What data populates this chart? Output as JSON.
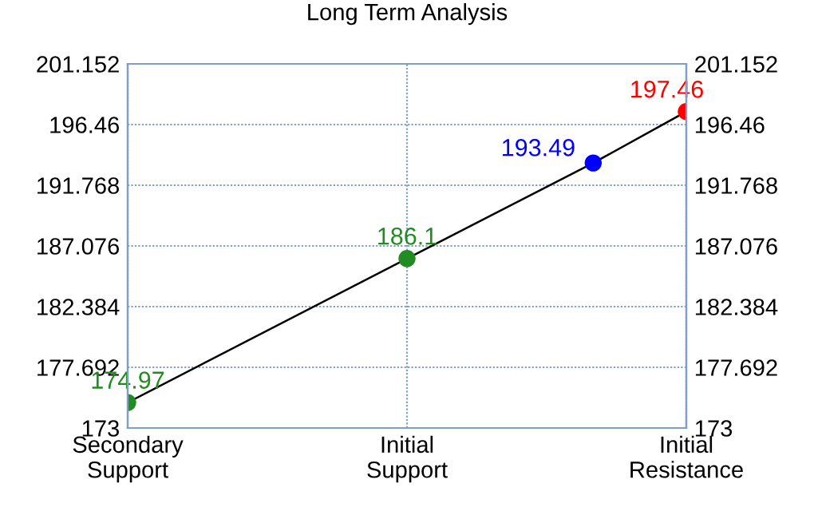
{
  "chart_data": {
    "type": "line",
    "title": "Long Term Analysis",
    "categories": [
      "Secondary\nSupport",
      null,
      null,
      "Initial\nSupport",
      null,
      null,
      "Initial\nResistance"
    ],
    "ylim": [
      173,
      201.152
    ],
    "yticks": [
      173,
      177.692,
      182.384,
      187.076,
      191.768,
      196.46,
      201.152
    ],
    "y2lim": [
      173,
      201.152
    ],
    "y2ticks": [
      173,
      177.692,
      182.384,
      187.076,
      191.768,
      196.46,
      201.152
    ],
    "grid": true,
    "marker": "circle",
    "data_labels": true,
    "series": [
      {
        "color": "#000000",
        "colors": [
          "#228b22",
          null,
          null,
          "#228b22",
          null,
          "#0000ff",
          "#ff0000"
        ],
        "values": [
          174.97,
          null,
          null,
          186.1,
          null,
          193.49,
          197.46
        ]
      }
    ]
  }
}
